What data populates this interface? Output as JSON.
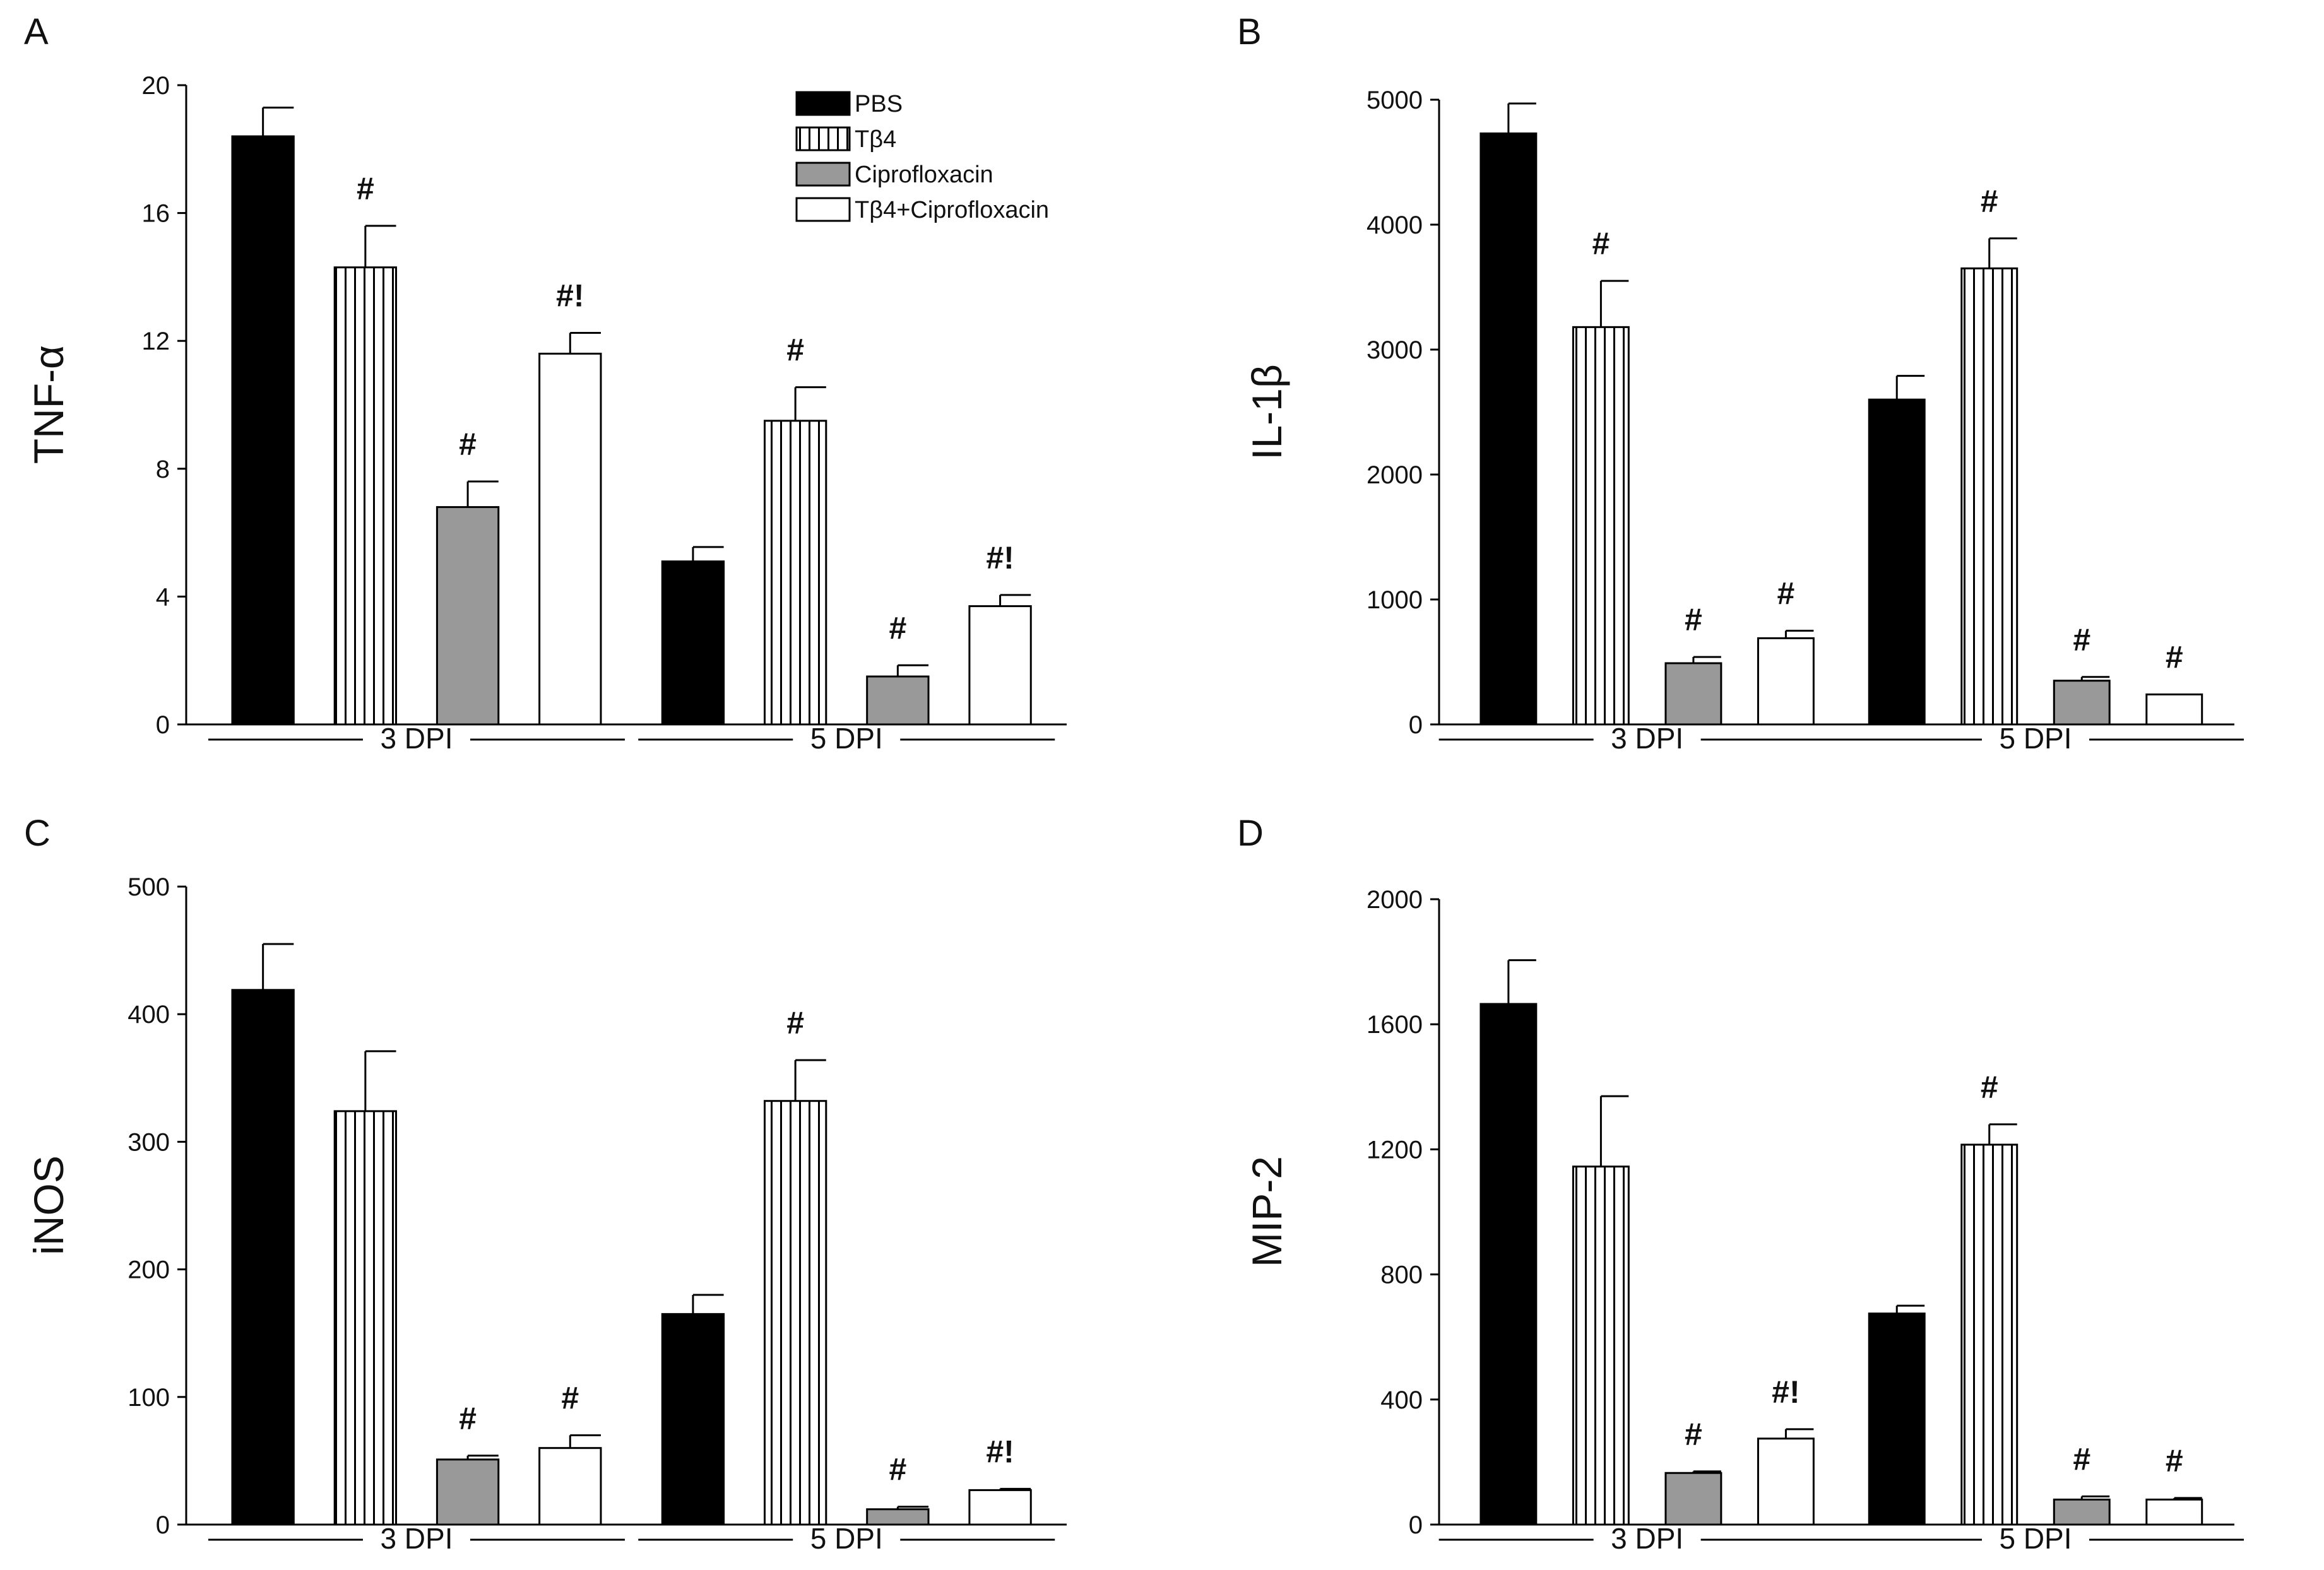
{
  "colors": {
    "pbs": "#000000",
    "tb4": "#ffffff",
    "cipro": "#999999",
    "combo": "#ffffff",
    "stroke": "#000000"
  },
  "legend": {
    "items": [
      {
        "label": "PBS",
        "fill": "pbs",
        "pattern": "solid"
      },
      {
        "label": "Tβ4",
        "fill": "tb4",
        "pattern": "vertical-lines"
      },
      {
        "label": "Ciprofloxacin",
        "fill": "cipro",
        "pattern": "solid"
      },
      {
        "label": "Tβ4+Ciprofloxacin",
        "fill": "combo",
        "pattern": "solid"
      }
    ]
  },
  "chart_data": [
    {
      "panel": "A",
      "type": "bar",
      "ylabel": "TNF-α",
      "ylim": [
        0,
        20
      ],
      "yticks": [
        0,
        4,
        8,
        12,
        16,
        20
      ],
      "groups": [
        "3 DPI",
        "5 DPI"
      ],
      "series": [
        {
          "name": "PBS",
          "values": [
            18.4,
            5.1
          ],
          "errors": [
            0.9,
            0.45
          ],
          "marks": [
            "",
            ""
          ]
        },
        {
          "name": "Tβ4",
          "values": [
            14.3,
            9.5
          ],
          "errors": [
            1.3,
            1.05
          ],
          "marks": [
            "#",
            "#"
          ]
        },
        {
          "name": "Ciprofloxacin",
          "values": [
            6.8,
            1.5
          ],
          "errors": [
            0.8,
            0.35
          ],
          "marks": [
            "#",
            "#"
          ]
        },
        {
          "name": "Tβ4+Ciprofloxacin",
          "values": [
            11.6,
            3.7
          ],
          "errors": [
            0.65,
            0.35
          ],
          "marks": [
            "#!",
            "#!"
          ]
        }
      ]
    },
    {
      "panel": "B",
      "type": "bar",
      "ylabel": "IL-1β",
      "ylim": [
        0,
        5000
      ],
      "yticks": [
        0,
        1000,
        2000,
        3000,
        4000,
        5000
      ],
      "groups": [
        "3 DPI",
        "5 DPI"
      ],
      "series": [
        {
          "name": "PBS",
          "values": [
            4730,
            2600
          ],
          "errors": [
            240,
            190
          ],
          "marks": [
            "",
            ""
          ]
        },
        {
          "name": "Tβ4",
          "values": [
            3180,
            3650
          ],
          "errors": [
            370,
            240
          ],
          "marks": [
            "#",
            "#"
          ]
        },
        {
          "name": "Ciprofloxacin",
          "values": [
            490,
            350
          ],
          "errors": [
            50,
            30
          ],
          "marks": [
            "#",
            "#"
          ]
        },
        {
          "name": "Tβ4+Ciprofloxacin",
          "values": [
            690,
            240
          ],
          "errors": [
            60,
            0
          ],
          "marks": [
            "#",
            "#"
          ]
        }
      ]
    },
    {
      "panel": "C",
      "type": "bar",
      "ylabel": "iNOS",
      "ylim": [
        0,
        500
      ],
      "yticks": [
        0,
        100,
        200,
        300,
        400,
        500
      ],
      "groups": [
        "3 DPI",
        "5 DPI"
      ],
      "series": [
        {
          "name": "PBS",
          "values": [
            419,
            165
          ],
          "errors": [
            36,
            15
          ],
          "marks": [
            "",
            ""
          ]
        },
        {
          "name": "Tβ4",
          "values": [
            324,
            332
          ],
          "errors": [
            47,
            32
          ],
          "marks": [
            "",
            "#"
          ]
        },
        {
          "name": "Ciprofloxacin",
          "values": [
            51,
            12
          ],
          "errors": [
            3,
            2
          ],
          "marks": [
            "#",
            "#"
          ]
        },
        {
          "name": "Tβ4+Ciprofloxacin",
          "values": [
            60,
            27
          ],
          "errors": [
            10,
            1
          ],
          "marks": [
            "#",
            "#!"
          ]
        }
      ]
    },
    {
      "panel": "D",
      "type": "bar",
      "ylabel": "MIP-2",
      "ylim": [
        0,
        2000
      ],
      "yticks": [
        0,
        400,
        800,
        1200,
        1600,
        2000
      ],
      "groups": [
        "3 DPI",
        "5 DPI"
      ],
      "series": [
        {
          "name": "PBS",
          "values": [
            1665,
            675
          ],
          "errors": [
            140,
            25
          ],
          "marks": [
            "",
            ""
          ]
        },
        {
          "name": "Tβ4",
          "values": [
            1145,
            1215
          ],
          "errors": [
            225,
            65
          ],
          "marks": [
            "",
            "#"
          ]
        },
        {
          "name": "Ciprofloxacin",
          "values": [
            165,
            80
          ],
          "errors": [
            5,
            10
          ],
          "marks": [
            "#",
            "#"
          ]
        },
        {
          "name": "Tβ4+Ciprofloxacin",
          "values": [
            275,
            80
          ],
          "errors": [
            30,
            5
          ],
          "marks": [
            "#!",
            "#"
          ]
        }
      ]
    }
  ]
}
